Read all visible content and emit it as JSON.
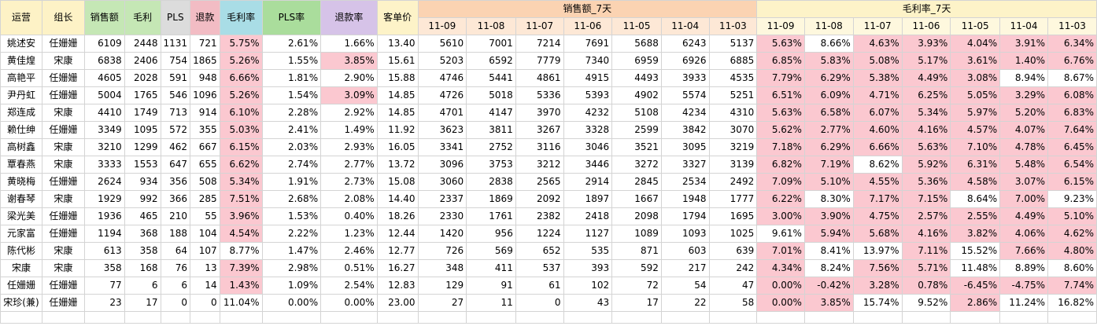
{
  "headers": {
    "operator": "运营",
    "leader": "组长",
    "sales": "销售额",
    "gross_profit": "毛利",
    "pls": "PLS",
    "refund": "退款",
    "margin_rate": "毛利率",
    "pls_rate": "PLS率",
    "refund_rate": "退款率",
    "avg_order": "客单价",
    "sales_7d": "销售额_7天",
    "margin_7d": "毛利率_7天",
    "dates": [
      "11-09",
      "11-08",
      "11-07",
      "11-06",
      "11-05",
      "11-04",
      "11-03"
    ]
  },
  "colors": {
    "highlight_pink": "#fbc8d0",
    "sales_7d_header": "#fbd3b2",
    "margin_7d_header": "#fdf3c8"
  },
  "rows": [
    {
      "op": "姚述安",
      "leader": "任姗姗",
      "sales": "6109",
      "gp": "2448",
      "pls": "1131",
      "refund": "721",
      "mr": "5.75%",
      "plsr": "2.61%",
      "rr": "1.66%",
      "avg": "13.40",
      "s7": [
        "5610",
        "7001",
        "7214",
        "7691",
        "5688",
        "6243",
        "5137"
      ],
      "m7": [
        "5.63%",
        "8.66%",
        "4.63%",
        "3.93%",
        "4.04%",
        "3.91%",
        "6.34%"
      ]
    },
    {
      "op": "黄佳煌",
      "leader": "宋康",
      "sales": "6838",
      "gp": "2406",
      "pls": "754",
      "refund": "1865",
      "mr": "5.26%",
      "plsr": "1.55%",
      "rr": "3.85%",
      "avg": "15.61",
      "s7": [
        "5203",
        "6592",
        "7779",
        "7340",
        "6959",
        "6926",
        "6885"
      ],
      "m7": [
        "6.85%",
        "5.83%",
        "5.08%",
        "5.17%",
        "3.61%",
        "1.40%",
        "6.76%"
      ]
    },
    {
      "op": "高艳平",
      "leader": "任姗姗",
      "sales": "4605",
      "gp": "2028",
      "pls": "591",
      "refund": "948",
      "mr": "6.66%",
      "plsr": "1.81%",
      "rr": "2.90%",
      "avg": "15.88",
      "s7": [
        "4746",
        "5441",
        "4861",
        "4915",
        "4493",
        "3933",
        "4535"
      ],
      "m7": [
        "7.79%",
        "6.29%",
        "5.38%",
        "4.49%",
        "3.08%",
        "8.94%",
        "8.67%"
      ]
    },
    {
      "op": "尹丹虹",
      "leader": "任姗姗",
      "sales": "5004",
      "gp": "1765",
      "pls": "546",
      "refund": "1096",
      "mr": "5.26%",
      "plsr": "1.54%",
      "rr": "3.09%",
      "avg": "14.85",
      "s7": [
        "4726",
        "5018",
        "5336",
        "5393",
        "4902",
        "5574",
        "5251"
      ],
      "m7": [
        "6.51%",
        "6.09%",
        "4.71%",
        "6.25%",
        "5.05%",
        "3.29%",
        "6.08%"
      ]
    },
    {
      "op": "郑连成",
      "leader": "宋康",
      "sales": "4410",
      "gp": "1749",
      "pls": "713",
      "refund": "914",
      "mr": "6.10%",
      "plsr": "2.28%",
      "rr": "2.92%",
      "avg": "14.85",
      "s7": [
        "4701",
        "4147",
        "3970",
        "4232",
        "5108",
        "4234",
        "4310"
      ],
      "m7": [
        "5.63%",
        "6.58%",
        "6.07%",
        "5.34%",
        "5.97%",
        "5.20%",
        "6.83%"
      ]
    },
    {
      "op": "赖仕绅",
      "leader": "任姗姗",
      "sales": "3349",
      "gp": "1095",
      "pls": "572",
      "refund": "355",
      "mr": "5.03%",
      "plsr": "2.41%",
      "rr": "1.49%",
      "avg": "11.92",
      "s7": [
        "3623",
        "3811",
        "3267",
        "3328",
        "2599",
        "3842",
        "3070"
      ],
      "m7": [
        "5.62%",
        "2.77%",
        "4.60%",
        "4.16%",
        "4.57%",
        "4.07%",
        "7.64%"
      ]
    },
    {
      "op": "高树鑫",
      "leader": "宋康",
      "sales": "3210",
      "gp": "1299",
      "pls": "462",
      "refund": "667",
      "mr": "6.15%",
      "plsr": "2.03%",
      "rr": "2.93%",
      "avg": "16.05",
      "s7": [
        "3341",
        "2752",
        "3116",
        "3046",
        "3521",
        "3095",
        "3219"
      ],
      "m7": [
        "7.18%",
        "6.29%",
        "6.66%",
        "5.63%",
        "7.10%",
        "4.78%",
        "6.45%"
      ]
    },
    {
      "op": "覃春燕",
      "leader": "宋康",
      "sales": "3333",
      "gp": "1553",
      "pls": "647",
      "refund": "655",
      "mr": "6.62%",
      "plsr": "2.74%",
      "rr": "2.77%",
      "avg": "13.72",
      "s7": [
        "3096",
        "3753",
        "3212",
        "3446",
        "3272",
        "3327",
        "3139"
      ],
      "m7": [
        "6.82%",
        "7.19%",
        "8.62%",
        "5.92%",
        "6.31%",
        "5.48%",
        "6.54%"
      ]
    },
    {
      "op": "黄晓梅",
      "leader": "任姗姗",
      "sales": "2624",
      "gp": "934",
      "pls": "356",
      "refund": "508",
      "mr": "5.34%",
      "plsr": "1.91%",
      "rr": "2.73%",
      "avg": "15.08",
      "s7": [
        "3060",
        "2838",
        "2565",
        "2914",
        "2845",
        "2534",
        "2492"
      ],
      "m7": [
        "7.09%",
        "5.10%",
        "4.55%",
        "5.36%",
        "4.58%",
        "3.07%",
        "6.15%"
      ]
    },
    {
      "op": "谢春琴",
      "leader": "宋康",
      "sales": "1929",
      "gp": "992",
      "pls": "366",
      "refund": "285",
      "mr": "7.51%",
      "plsr": "2.68%",
      "rr": "2.08%",
      "avg": "14.40",
      "s7": [
        "2337",
        "1869",
        "2092",
        "1897",
        "1667",
        "1948",
        "1777"
      ],
      "m7": [
        "6.22%",
        "8.30%",
        "7.17%",
        "7.15%",
        "8.64%",
        "7.00%",
        "9.23%"
      ]
    },
    {
      "op": "梁光美",
      "leader": "任姗姗",
      "sales": "1936",
      "gp": "465",
      "pls": "210",
      "refund": "55",
      "mr": "3.96%",
      "plsr": "1.53%",
      "rr": "0.40%",
      "avg": "18.26",
      "s7": [
        "2330",
        "1761",
        "2382",
        "2418",
        "2098",
        "1794",
        "1695"
      ],
      "m7": [
        "3.00%",
        "3.90%",
        "4.75%",
        "2.57%",
        "2.55%",
        "4.49%",
        "5.10%"
      ]
    },
    {
      "op": "元家富",
      "leader": "任姗姗",
      "sales": "1194",
      "gp": "368",
      "pls": "188",
      "refund": "104",
      "mr": "4.54%",
      "plsr": "2.22%",
      "rr": "1.23%",
      "avg": "12.44",
      "s7": [
        "1420",
        "956",
        "1224",
        "1127",
        "1089",
        "1093",
        "1025"
      ],
      "m7": [
        "9.61%",
        "5.94%",
        "5.68%",
        "4.16%",
        "3.82%",
        "4.06%",
        "4.62%"
      ]
    },
    {
      "op": "陈代彬",
      "leader": "宋康",
      "sales": "613",
      "gp": "358",
      "pls": "64",
      "refund": "107",
      "mr": "8.77%",
      "plsr": "1.47%",
      "rr": "2.46%",
      "avg": "12.77",
      "s7": [
        "726",
        "569",
        "652",
        "535",
        "871",
        "603",
        "639"
      ],
      "m7": [
        "7.01%",
        "8.41%",
        "13.97%",
        "7.11%",
        "15.52%",
        "7.66%",
        "4.80%"
      ]
    },
    {
      "op": "宋康",
      "leader": "宋康",
      "sales": "358",
      "gp": "168",
      "pls": "76",
      "refund": "13",
      "mr": "7.39%",
      "plsr": "2.98%",
      "rr": "0.51%",
      "avg": "16.27",
      "s7": [
        "348",
        "411",
        "537",
        "393",
        "592",
        "217",
        "242"
      ],
      "m7": [
        "4.34%",
        "8.24%",
        "7.56%",
        "5.71%",
        "11.48%",
        "8.89%",
        "8.60%"
      ]
    },
    {
      "op": "任姗姗",
      "leader": "任姗姗",
      "sales": "77",
      "gp": "6",
      "pls": "6",
      "refund": "14",
      "mr": "1.43%",
      "plsr": "1.09%",
      "rr": "2.54%",
      "avg": "12.83",
      "s7": [
        "129",
        "91",
        "61",
        "102",
        "72",
        "54",
        "47"
      ],
      "m7": [
        "0.00%",
        "-0.42%",
        "3.28%",
        "0.78%",
        "-6.45%",
        "-4.75%",
        "7.74%"
      ]
    },
    {
      "op": "宋珍(兼)",
      "leader": "任姗姗",
      "sales": "23",
      "gp": "17",
      "pls": "0",
      "refund": "0",
      "mr": "11.04%",
      "plsr": "0.00%",
      "rr": "0.00%",
      "avg": "23.00",
      "s7": [
        "27",
        "11",
        "0",
        "43",
        "17",
        "22",
        "58"
      ],
      "m7": [
        "0.00%",
        "3.85%",
        "15.74%",
        "9.52%",
        "2.86%",
        "11.24%",
        "16.82%"
      ]
    }
  ]
}
